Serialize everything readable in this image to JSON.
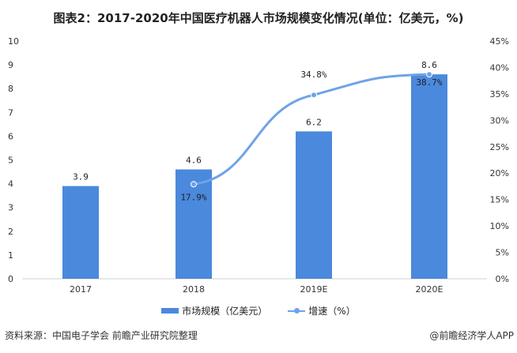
{
  "title": "图表2：2017-2020年中国医疗机器人市场规模变化情况(单位：亿美元，%)",
  "source": "资料来源：中国电子学会 前瞻产业研究院整理",
  "brand": "@前瞻经济学人APP",
  "colors": {
    "bar": "#4a89dc",
    "line": "#6ea3e8"
  },
  "chart_data": {
    "type": "bar+line",
    "categories": [
      "2017",
      "2018",
      "2019E",
      "2020E"
    ],
    "series": [
      {
        "name": "市场规模（亿美元）",
        "type": "bar",
        "axis": "left",
        "values": [
          3.9,
          4.6,
          6.2,
          8.6
        ],
        "labels": [
          "3.9",
          "4.6",
          "6.2",
          "8.6"
        ]
      },
      {
        "name": "增速（%）",
        "type": "line",
        "axis": "right",
        "values": [
          null,
          17.9,
          34.8,
          38.7
        ],
        "labels": [
          "",
          "17.9%",
          "34.8%",
          "38.7%"
        ]
      }
    ],
    "ylim": [
      0,
      10
    ],
    "yticks": [
      "0",
      "1",
      "2",
      "3",
      "4",
      "5",
      "6",
      "7",
      "8",
      "9",
      "10"
    ],
    "y2lim": [
      0,
      45
    ],
    "y2ticks": [
      "0%",
      "5%",
      "10%",
      "15%",
      "20%",
      "25%",
      "30%",
      "35%",
      "40%",
      "45%"
    ],
    "legend": "bottom",
    "grid": false
  }
}
